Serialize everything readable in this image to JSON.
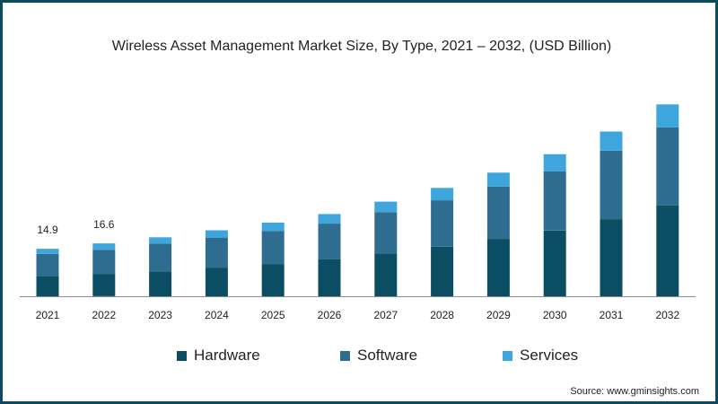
{
  "title": "Wireless Asset Management Market Size, By Type, 2021 – 2032, (USD Billion)",
  "source": "Source: www.gminsights.com",
  "colors": {
    "border": "#0e4a5e",
    "axis": "#8c8c8c",
    "text": "#222222"
  },
  "chart_data": {
    "type": "bar",
    "stacked": true,
    "title": "Wireless Asset Management Market Size, By Type, 2021 – 2032, (USD Billion)",
    "xlabel": "",
    "ylabel": "",
    "ylim": [
      0,
      60
    ],
    "grid": false,
    "legend_position": "bottom",
    "categories": [
      "2021",
      "2022",
      "2023",
      "2024",
      "2025",
      "2026",
      "2027",
      "2028",
      "2029",
      "2030",
      "2031",
      "2032"
    ],
    "series": [
      {
        "name": "Hardware",
        "color": "#0b4d63",
        "values": [
          6.3,
          7.0,
          7.8,
          9.0,
          10.1,
          11.6,
          13.4,
          15.5,
          17.9,
          20.6,
          24.2,
          28.5
        ]
      },
      {
        "name": "Software",
        "color": "#2f6d90",
        "values": [
          7.0,
          7.6,
          8.7,
          9.3,
          10.4,
          11.2,
          13.0,
          14.6,
          16.5,
          18.6,
          21.5,
          24.5
        ]
      },
      {
        "name": "Services",
        "color": "#3fa6dd",
        "values": [
          1.6,
          2.0,
          2.0,
          2.4,
          2.6,
          3.0,
          3.3,
          3.9,
          4.4,
          5.4,
          6.0,
          7.2
        ]
      }
    ],
    "data_labels": [
      {
        "category": "2021",
        "text": "14.9"
      },
      {
        "category": "2022",
        "text": "16.6"
      }
    ]
  }
}
